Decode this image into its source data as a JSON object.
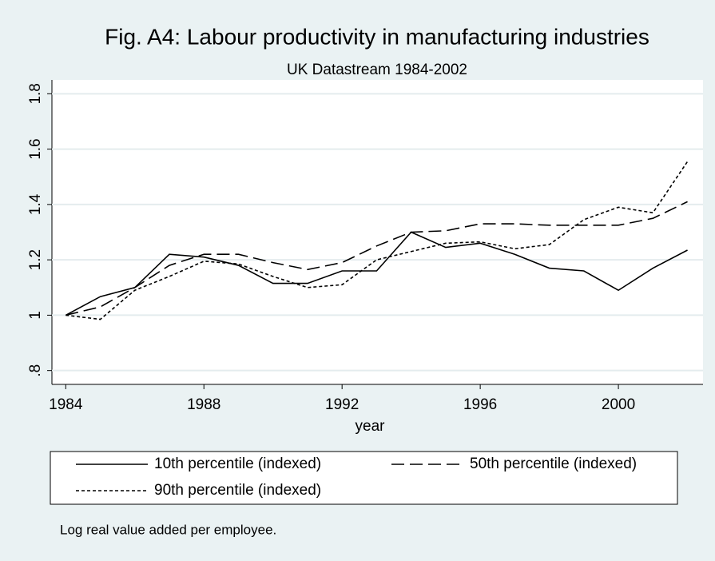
{
  "chart_data": {
    "type": "line",
    "title": "Fig. A4: Labour productivity in manufacturing industries",
    "subtitle": "UK Datastream 1984-2002",
    "xlabel": "year",
    "note": "Log real value added per employee.",
    "x": [
      1984,
      1985,
      1986,
      1987,
      1988,
      1989,
      1990,
      1991,
      1992,
      1993,
      1994,
      1995,
      1996,
      1997,
      1998,
      1999,
      2000,
      2001,
      2002
    ],
    "series": [
      {
        "name": "10th percentile (indexed)",
        "color": "#000000",
        "line_style": "solid",
        "values": [
          1.0,
          1.067,
          1.1,
          1.22,
          1.21,
          1.18,
          1.115,
          1.115,
          1.16,
          1.16,
          1.3,
          1.245,
          1.26,
          1.22,
          1.17,
          1.16,
          1.09,
          1.17,
          1.235
        ]
      },
      {
        "name": "50th percentile (indexed)",
        "color": "#000000",
        "line_style": "dashed",
        "values": [
          1.0,
          1.03,
          1.1,
          1.18,
          1.22,
          1.22,
          1.19,
          1.165,
          1.19,
          1.25,
          1.3,
          1.305,
          1.33,
          1.33,
          1.325,
          1.325,
          1.325,
          1.35,
          1.41
        ]
      },
      {
        "name": "90th percentile (indexed)",
        "color": "#000000",
        "line_style": "dotted",
        "values": [
          1.0,
          0.985,
          1.09,
          1.14,
          1.195,
          1.185,
          1.14,
          1.1,
          1.11,
          1.2,
          1.23,
          1.26,
          1.265,
          1.24,
          1.255,
          1.345,
          1.39,
          1.37,
          1.555
        ]
      }
    ],
    "xlim": [
      1983.6,
      2002.45
    ],
    "ylim": [
      0.75,
      1.85
    ],
    "xticks": [
      1984,
      1988,
      1992,
      1996,
      2000
    ],
    "yticks": [
      {
        "value": 0.8,
        "label": ".8"
      },
      1,
      1.2,
      1.4,
      1.6,
      1.8
    ],
    "grid": true
  }
}
